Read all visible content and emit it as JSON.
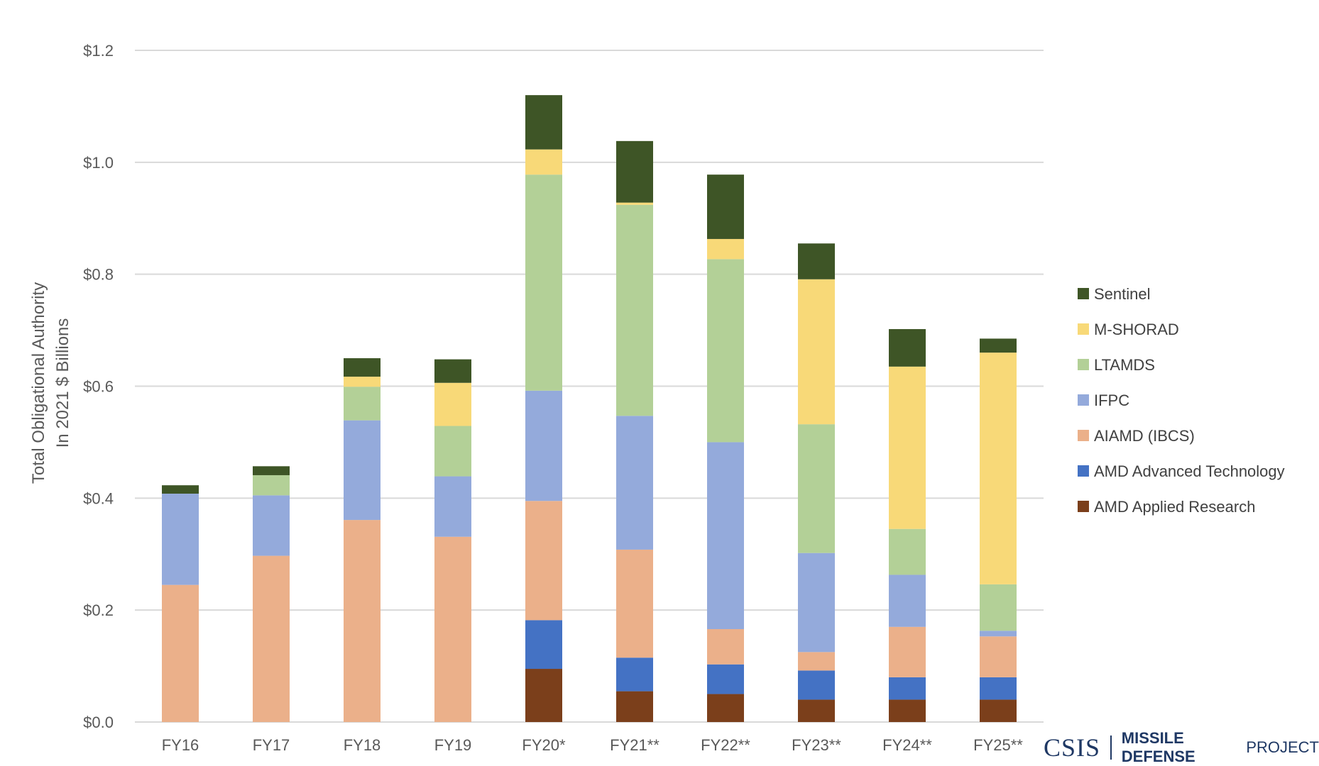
{
  "chart_data": {
    "type": "bar",
    "stacked": true,
    "title": "",
    "xlabel": "",
    "ylabel": [
      "Total Obligational Authority",
      "In 2021 $ Billions"
    ],
    "ylim": [
      0,
      1.2
    ],
    "yticks": [
      0.0,
      0.2,
      0.4,
      0.6,
      0.8,
      1.0,
      1.2
    ],
    "ytick_labels": [
      "$0.0",
      "$0.2",
      "$0.4",
      "$0.6",
      "$0.8",
      "$1.0",
      "$1.2"
    ],
    "grid": true,
    "legend_position": "right",
    "categories": [
      "FY16",
      "FY17",
      "FY18",
      "FY19",
      "FY20*",
      "FY21**",
      "FY22**",
      "FY23**",
      "FY24**",
      "FY25**"
    ],
    "series": [
      {
        "name": "AMD Applied Research",
        "color": "#7b3f1b",
        "values": [
          0,
          0,
          0,
          0,
          0.095,
          0.055,
          0.05,
          0.04,
          0.04,
          0.04
        ]
      },
      {
        "name": "AMD Advanced Technology",
        "color": "#4472c4",
        "values": [
          0,
          0,
          0,
          0,
          0.087,
          0.06,
          0.053,
          0.052,
          0.04,
          0.04
        ]
      },
      {
        "name": "AIAMD (IBCS)",
        "color": "#ebb08a",
        "values": [
          0.245,
          0.297,
          0.361,
          0.331,
          0.213,
          0.193,
          0.063,
          0.033,
          0.09,
          0.073
        ]
      },
      {
        "name": "IFPC",
        "color": "#94aadb",
        "values": [
          0.163,
          0.108,
          0.178,
          0.108,
          0.197,
          0.239,
          0.334,
          0.177,
          0.093,
          0.01
        ]
      },
      {
        "name": "LTAMDS",
        "color": "#b3d097",
        "values": [
          0,
          0.036,
          0.06,
          0.09,
          0.386,
          0.377,
          0.327,
          0.23,
          0.082,
          0.083
        ]
      },
      {
        "name": "M-SHORAD",
        "color": "#f8d978",
        "values": [
          0,
          0,
          0.018,
          0.077,
          0.045,
          0.004,
          0.036,
          0.259,
          0.29,
          0.414
        ]
      },
      {
        "name": "Sentinel",
        "color": "#3e5526",
        "values": [
          0.015,
          0.016,
          0.033,
          0.042,
          0.097,
          0.11,
          0.115,
          0.064,
          0.067,
          0.025
        ]
      }
    ],
    "legend_order": [
      "Sentinel",
      "M-SHORAD",
      "LTAMDS",
      "IFPC",
      "AIAMD (IBCS)",
      "AMD Advanced Technology",
      "AMD Applied Research"
    ]
  },
  "branding": {
    "org": "CSIS",
    "project_bold": "MISSILE DEFENSE",
    "project_light": "PROJECT"
  }
}
